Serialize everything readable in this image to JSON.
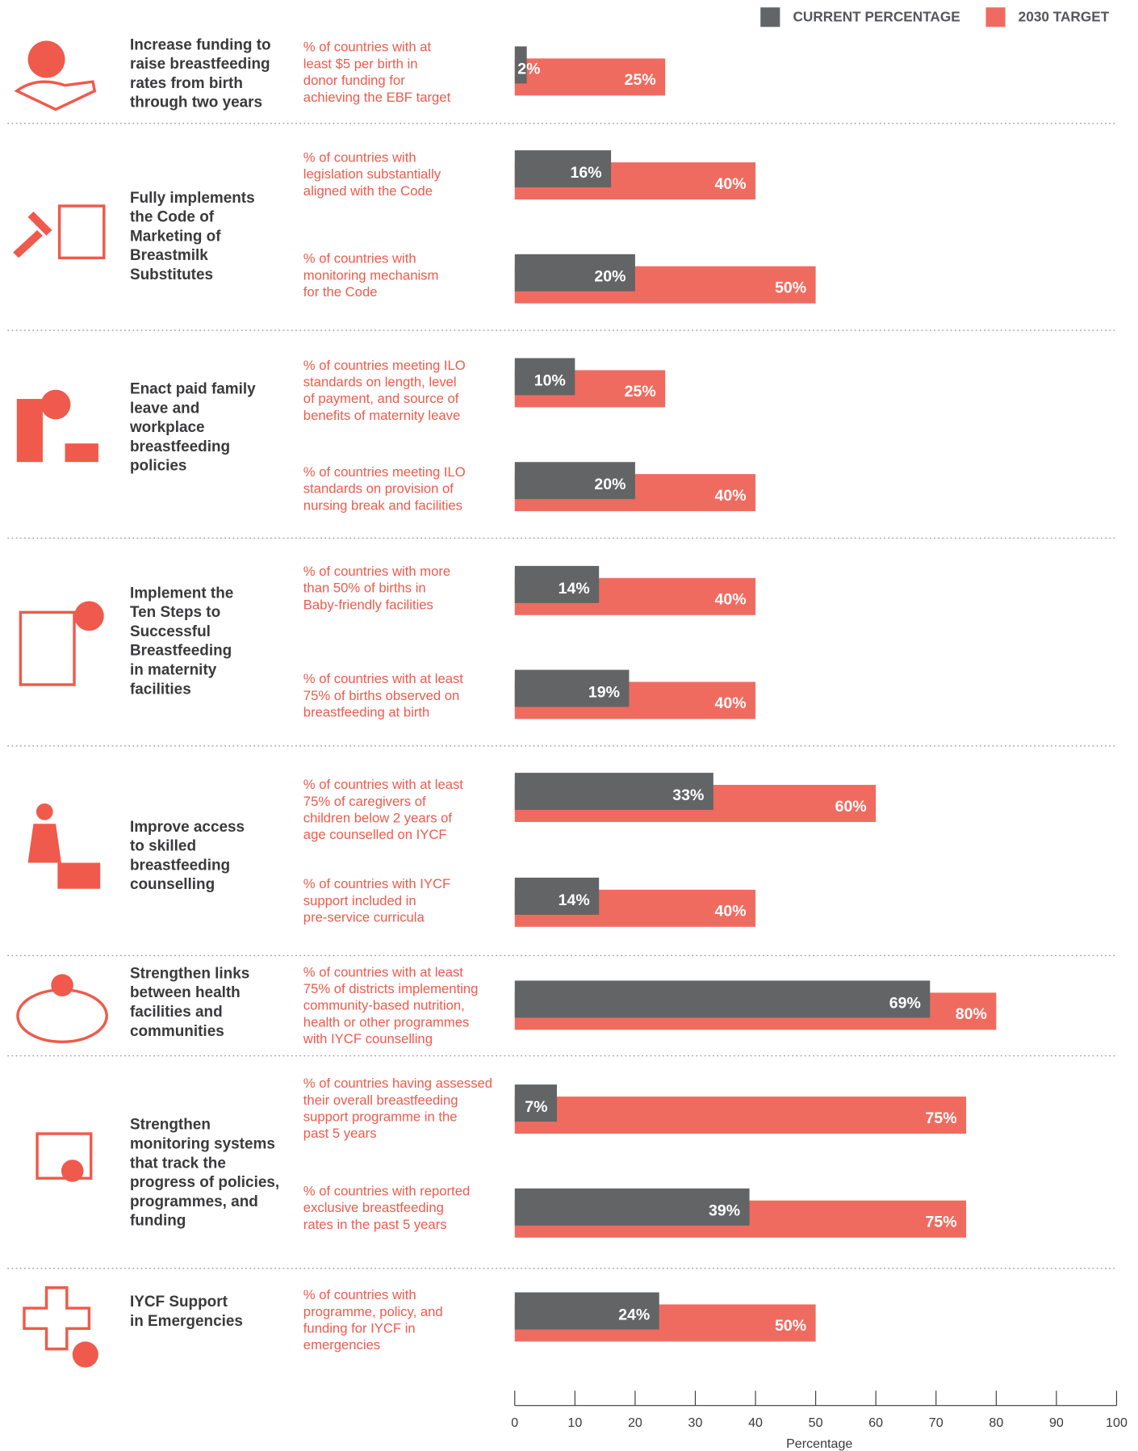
{
  "chart_data": {
    "type": "bar",
    "orientation": "horizontal",
    "xlabel": "Percentage",
    "xlim": [
      0,
      100
    ],
    "xticks": [
      0,
      10,
      20,
      30,
      40,
      50,
      60,
      70,
      80,
      90,
      100
    ],
    "groups": [
      {
        "label": [
          "Increase funding to",
          "raise breastfeeding",
          "rates from birth",
          "through two years"
        ],
        "categories": [
          [
            "% of countries with at",
            "least $5 per birth in",
            "donor funding for",
            "achieving the EBF target"
          ]
        ]
      },
      {
        "label": [
          "Fully implements",
          "the Code of",
          "Marketing of",
          "Breastmilk",
          "Substitutes"
        ],
        "categories": [
          [
            "% of countries with",
            "legislation substantially",
            "aligned with the Code"
          ],
          [
            "% of countries with",
            "monitoring mechanism",
            "for the Code"
          ]
        ]
      },
      {
        "label": [
          "Enact paid family",
          "leave and",
          "workplace",
          "breastfeeding",
          "policies"
        ],
        "categories": [
          [
            "% of countries meeting ILO",
            "standards on length, level",
            "of payment, and source of",
            "benefits of maternity leave"
          ],
          [
            "% of countries meeting ILO",
            "standards on provision of",
            "nursing break and facilities"
          ]
        ]
      },
      {
        "label": [
          "Implement the",
          "Ten Steps to",
          "Successful",
          "Breastfeeding",
          "in maternity",
          "facilities"
        ],
        "categories": [
          [
            "% of countries with more",
            "than 50% of births in",
            "Baby-friendly facilities"
          ],
          [
            "% of countries with at least",
            "75% of births observed on",
            "breastfeeding at birth"
          ]
        ]
      },
      {
        "label": [
          "Improve access",
          "to skilled",
          "breastfeeding",
          "counselling"
        ],
        "categories": [
          [
            "% of countries with at least",
            "75% of caregivers of",
            "children below 2 years of",
            "age counselled on IYCF"
          ],
          [
            "% of countries with IYCF",
            "support included in",
            "pre-service curricula"
          ]
        ]
      },
      {
        "label": [
          "Strengthen links",
          "between health",
          "facilities and",
          "communities"
        ],
        "categories": [
          [
            "% of countries with at least",
            "75% of districts implementing",
            "community-based nutrition,",
            "health or other programmes",
            "with IYCF counselling"
          ]
        ]
      },
      {
        "label": [
          "Strengthen",
          "monitoring systems",
          "that track the",
          "progress of policies,",
          "programmes, and",
          "funding"
        ],
        "categories": [
          [
            "% of countries having assessed",
            "their overall breastfeeding",
            "support programme in the",
            "past 5 years"
          ],
          [
            "% of countries with reported",
            "exclusive breastfeeding",
            "rates in the past 5 years"
          ]
        ]
      },
      {
        "label": [
          "IYCF Support",
          "in Emergencies"
        ],
        "categories": [
          [
            "% of countries with",
            "programme, policy, and",
            "funding for IYCF in",
            "emergencies"
          ]
        ]
      }
    ],
    "series": [
      {
        "name": "CURRENT PERCENTAGE",
        "color": "#636466",
        "values": [
          2,
          16,
          20,
          10,
          20,
          14,
          19,
          33,
          14,
          69,
          7,
          39,
          24
        ],
        "value_labels": [
          "2%",
          "16%",
          "20%",
          "10%",
          "20%",
          "14%",
          "19%",
          "33%",
          "14%",
          "69%",
          "7%",
          "39%",
          "24%"
        ]
      },
      {
        "name": "2030 TARGET",
        "color": "#f06b5f",
        "values": [
          25,
          40,
          50,
          25,
          40,
          40,
          40,
          60,
          40,
          80,
          75,
          75,
          50
        ],
        "value_labels": [
          "25%",
          "40%",
          "50%",
          "25%",
          "40%",
          "40%",
          "40%",
          "60%",
          "40%",
          "80%",
          "75%",
          "75%",
          "50%"
        ]
      }
    ]
  }
}
